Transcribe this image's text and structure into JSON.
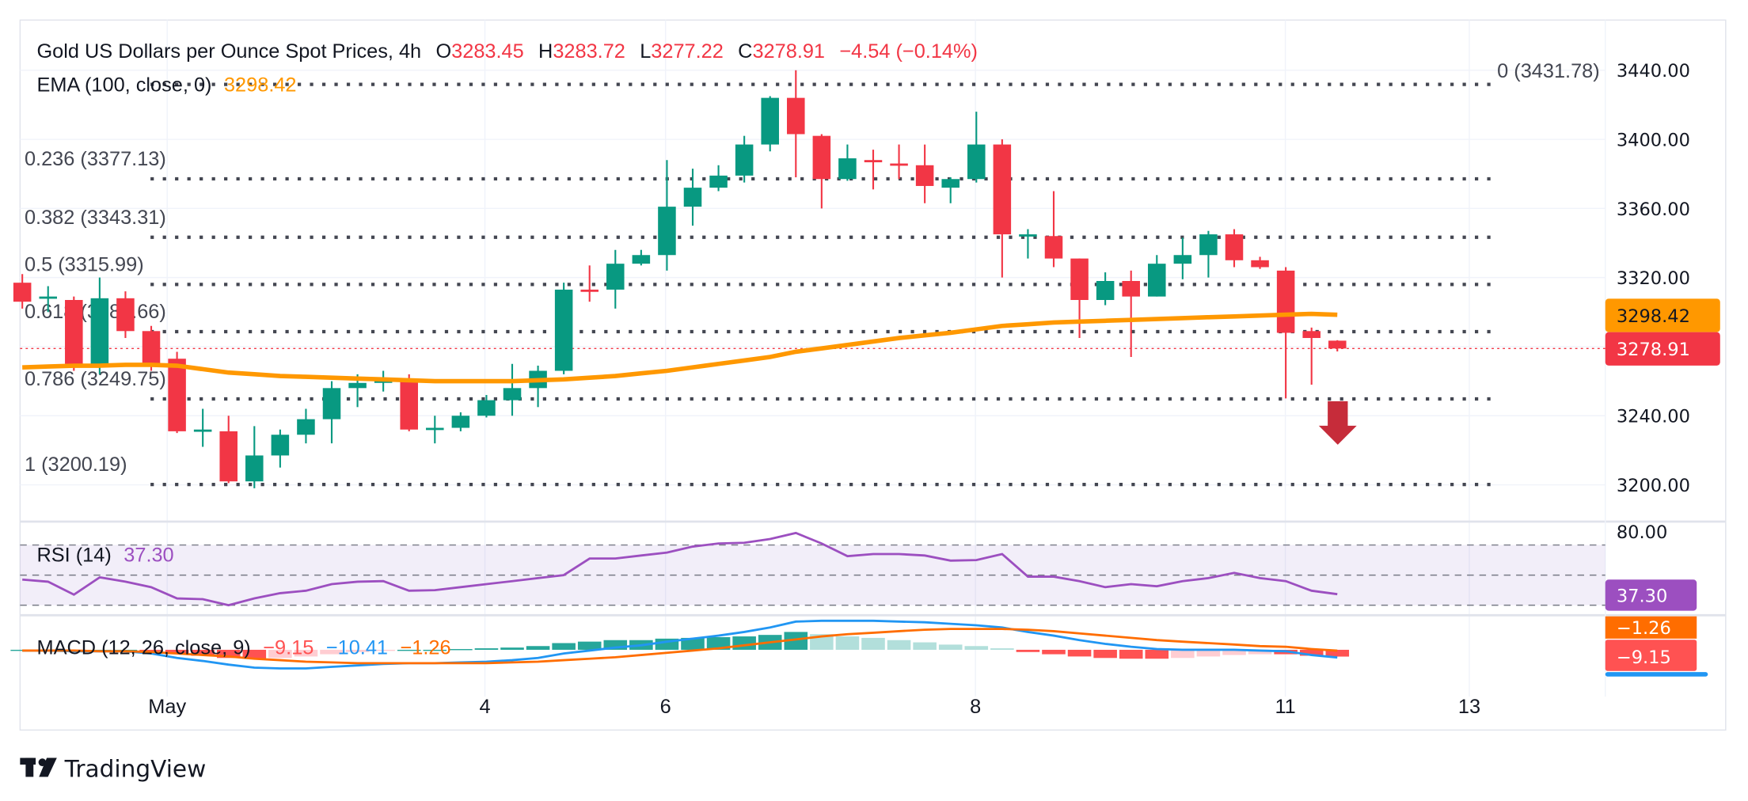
{
  "header": {
    "symbol_title": "Gold US Dollars per Ounce Spot Prices, 4h",
    "o_label": "O",
    "o_value": "3283.45",
    "h_label": "H",
    "h_value": "3283.72",
    "l_label": "L",
    "l_value": "3277.22",
    "c_label": "C",
    "c_value": "3278.91",
    "change": "−4.54 (−0.14%)",
    "ema_label": "EMA (100, close, 0)",
    "ema_value": "3298.42"
  },
  "colors": {
    "up": "#089981",
    "down": "#f23645",
    "ema": "#ff9800",
    "rsi": "#9c4fc0",
    "macd": "#2196f3",
    "signal": "#ff6d00",
    "fib": "#434651",
    "arrow": "#c62c3a"
  },
  "fib_levels": [
    {
      "level": "0",
      "price": 3431.78,
      "label": "0 (3431.78)"
    },
    {
      "level": "0.236",
      "price": 3377.13,
      "label": "0.236 (3377.13)"
    },
    {
      "level": "0.382",
      "price": 3343.31,
      "label": "0.382 (3343.31)"
    },
    {
      "level": "0.5",
      "price": 3315.99,
      "label": "0.5 (3315.99)"
    },
    {
      "level": "0.618",
      "price": 3288.66,
      "label": "0.618 (3288.66)"
    },
    {
      "level": "0.786",
      "price": 3249.75,
      "label": "0.786 (3249.75)"
    },
    {
      "level": "1",
      "price": 3200.19,
      "label": "1 (3200.19)"
    }
  ],
  "price_axis": {
    "ticks": [
      "3440.00",
      "3400.00",
      "3360.00",
      "3320.00",
      "3240.00",
      "3200.00"
    ],
    "ema_badge": "3298.42",
    "last_badge": "3278.91"
  },
  "time_axis": {
    "ticks": [
      "May",
      "4",
      "6",
      "8",
      "11",
      "13"
    ]
  },
  "rsi": {
    "label": "RSI (14)",
    "value": "37.30",
    "axis_tick": "80.00",
    "badge": "37.30"
  },
  "macd": {
    "label": "MACD (12, 26, close, 9)",
    "hist_value": "−9.15",
    "macd_value": "−10.41",
    "signal_value": "−1.26",
    "signal_badge": "−1.26",
    "hist_badge": "−9.15"
  },
  "branding": {
    "logo_text": "TradingView"
  },
  "chart_data": {
    "type": "candlestick",
    "title": "Gold US Dollars per Ounce Spot Prices, 4h",
    "ylim": [
      3180,
      3450
    ],
    "ohlc": [
      [
        3317,
        3322,
        3302,
        3306
      ],
      [
        3308,
        3315,
        3300,
        3309
      ],
      [
        3307,
        3309,
        3266,
        3270
      ],
      [
        3270,
        3320,
        3264,
        3308
      ],
      [
        3308,
        3312,
        3285,
        3289
      ],
      [
        3289,
        3292,
        3266,
        3269
      ],
      [
        3273,
        3277,
        3230,
        3231
      ],
      [
        3231,
        3244,
        3222,
        3232
      ],
      [
        3231,
        3240,
        3201,
        3202
      ],
      [
        3202,
        3234,
        3198,
        3217
      ],
      [
        3217,
        3232,
        3210,
        3229
      ],
      [
        3229,
        3244,
        3224,
        3238
      ],
      [
        3238,
        3260,
        3224,
        3256
      ],
      [
        3256,
        3264,
        3245,
        3259
      ],
      [
        3259,
        3266,
        3254,
        3261
      ],
      [
        3261,
        3264,
        3231,
        3232
      ],
      [
        3232,
        3240,
        3224,
        3233
      ],
      [
        3233,
        3242,
        3231,
        3240
      ],
      [
        3240,
        3252,
        3239,
        3249
      ],
      [
        3249,
        3270,
        3240,
        3256
      ],
      [
        3256,
        3269,
        3245,
        3266
      ],
      [
        3266,
        3317,
        3264,
        3313
      ],
      [
        3313,
        3327,
        3306,
        3312
      ],
      [
        3313,
        3336,
        3302,
        3328
      ],
      [
        3328,
        3336,
        3327,
        3333
      ],
      [
        3333,
        3388,
        3324,
        3361
      ],
      [
        3361,
        3383,
        3350,
        3372
      ],
      [
        3372,
        3385,
        3370,
        3379
      ],
      [
        3379,
        3402,
        3375,
        3397
      ],
      [
        3397,
        3425,
        3393,
        3424
      ],
      [
        3424,
        3440,
        3378,
        3403
      ],
      [
        3402,
        3403,
        3360,
        3377
      ],
      [
        3377,
        3397,
        3376,
        3389
      ],
      [
        3388,
        3394,
        3371,
        3387
      ],
      [
        3386,
        3397,
        3377,
        3385
      ],
      [
        3385,
        3397,
        3363,
        3373
      ],
      [
        3372,
        3378,
        3363,
        3377
      ],
      [
        3377,
        3416,
        3375,
        3397
      ],
      [
        3397,
        3400,
        3320,
        3345
      ],
      [
        3344,
        3348,
        3331,
        3345
      ],
      [
        3344,
        3370,
        3326,
        3331
      ],
      [
        3331,
        3331,
        3285,
        3307
      ],
      [
        3307,
        3323,
        3304,
        3318
      ],
      [
        3318,
        3324,
        3274,
        3309
      ],
      [
        3309,
        3333,
        3309,
        3328
      ],
      [
        3328,
        3343,
        3319,
        3333
      ],
      [
        3333,
        3347,
        3320,
        3345
      ],
      [
        3345,
        3348,
        3326,
        3330
      ],
      [
        3330,
        3332,
        3325,
        3326
      ],
      [
        3324,
        3326,
        3250,
        3288
      ],
      [
        3289,
        3291,
        3258,
        3285
      ],
      [
        3283.45,
        3283.72,
        3277.22,
        3278.91
      ]
    ],
    "ema100": [
      3268,
      3268.5,
      3269,
      3269,
      3269.5,
      3269.5,
      3269,
      3267,
      3265,
      3264,
      3263,
      3262.5,
      3262,
      3261.5,
      3261,
      3260.5,
      3260,
      3260,
      3260,
      3260,
      3260.5,
      3261,
      3262,
      3263,
      3264.5,
      3266,
      3268,
      3270,
      3272,
      3274,
      3277,
      3279,
      3281,
      3283,
      3285,
      3286.5,
      3288,
      3290,
      3292,
      3293,
      3294,
      3294.5,
      3295,
      3295.5,
      3296,
      3296.5,
      3297,
      3297.5,
      3298,
      3298.5,
      3299,
      3298.42
    ],
    "rsi": [
      47,
      45.6,
      37,
      48.5,
      45.6,
      42,
      34.5,
      34,
      30,
      34.5,
      38,
      39.6,
      44,
      45.6,
      46,
      39.6,
      40,
      42,
      44,
      46,
      48,
      50,
      61,
      61,
      63,
      65,
      69,
      71,
      71.5,
      74,
      78,
      71,
      62.6,
      64,
      64,
      63,
      59.6,
      60,
      64,
      49,
      49,
      46,
      42,
      44,
      42.6,
      46,
      48,
      51.5,
      48,
      46,
      39.6,
      37.3
    ],
    "rsi_bands": [
      70,
      50,
      30
    ],
    "macd_line": [
      -1,
      -1,
      -2,
      -2,
      -2,
      -5,
      -11,
      -15,
      -20,
      -24,
      -25,
      -25,
      -23,
      -21,
      -19,
      -18,
      -18,
      -17,
      -16,
      -14,
      -11,
      -5,
      -1,
      3,
      6,
      11,
      15,
      19,
      24,
      30,
      38,
      39,
      39,
      39,
      38,
      37,
      35,
      33,
      30,
      24,
      19,
      13,
      8,
      4,
      1,
      0,
      0,
      0,
      -1,
      -2,
      -7,
      -10.41
    ],
    "signal_line": [
      -1,
      -1,
      -1,
      -2,
      -2,
      -3,
      -5,
      -7,
      -9,
      -12,
      -14,
      -16,
      -17,
      -18,
      -18,
      -18,
      -18,
      -18,
      -18,
      -17,
      -16,
      -14,
      -12,
      -10,
      -7,
      -4,
      -1,
      2,
      6,
      10,
      14,
      18,
      21,
      23,
      25,
      27,
      28,
      28,
      28,
      27,
      25,
      22,
      19,
      16,
      13,
      11,
      9,
      7,
      5,
      4,
      1,
      -1.26
    ],
    "last_price": 3278.91
  }
}
